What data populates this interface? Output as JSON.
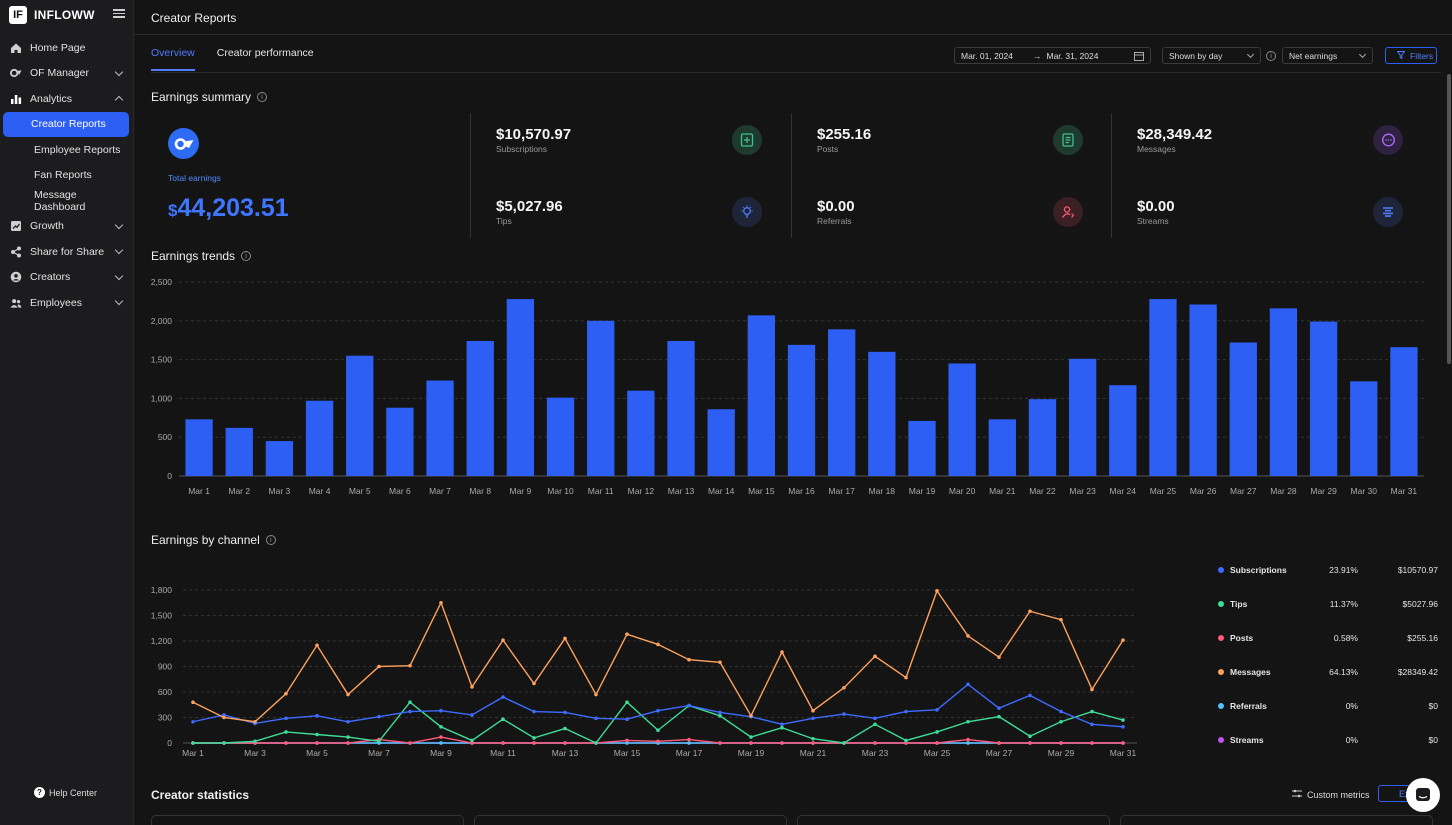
{
  "app": {
    "logo_letters": "IF",
    "name": "INFLOWW"
  },
  "sidebar": {
    "items": [
      {
        "label": "Home Page",
        "icon": "home-icon"
      },
      {
        "label": "OF Manager",
        "icon": "of-icon"
      },
      {
        "label": "Analytics",
        "icon": "bar-chart-icon"
      },
      {
        "label": "Growth",
        "icon": "growth-icon"
      },
      {
        "label": "Share for Share",
        "icon": "share-icon"
      },
      {
        "label": "Creators",
        "icon": "user-circle-icon"
      },
      {
        "label": "Employees",
        "icon": "people-icon"
      }
    ],
    "analytics_sub": [
      "Creator Reports",
      "Employee Reports",
      "Fan Reports",
      "Message Dashboard"
    ],
    "help": "Help Center"
  },
  "header": {
    "title": "Creator Reports"
  },
  "tabs": [
    "Overview",
    "Creator performance"
  ],
  "controls": {
    "date_from": "Mar. 01, 2024",
    "arrow": "→",
    "date_to": "Mar. 31, 2024",
    "shown_by": "Shown by day",
    "metric": "Net earnings",
    "filters": "Filters"
  },
  "summary": {
    "title": "Earnings summary",
    "total_label": "Total earnings",
    "total_symbol": "$",
    "total_value": "44,203.51",
    "stats": [
      {
        "value": "$10,570.97",
        "label": "Subscriptions",
        "icon": "subscription-icon",
        "color": "#3ec28f"
      },
      {
        "value": "$5,027.96",
        "label": "Tips",
        "icon": "bulb-icon",
        "color": "#4f7cff"
      },
      {
        "value": "$255.16",
        "label": "Posts",
        "icon": "document-icon",
        "color": "#3ec28f"
      },
      {
        "value": "$0.00",
        "label": "Referrals",
        "icon": "referral-icon",
        "color": "#ff5a6a"
      },
      {
        "value": "$28,349.42",
        "label": "Messages",
        "icon": "message-icon",
        "color": "#b06cff"
      },
      {
        "value": "$0.00",
        "label": "Streams",
        "icon": "stream-icon",
        "color": "#4f7cff"
      }
    ]
  },
  "chart_data": [
    {
      "type": "bar",
      "title": "Earnings trends",
      "categories": [
        "Mar 1",
        "Mar 2",
        "Mar 3",
        "Mar 4",
        "Mar 5",
        "Mar 6",
        "Mar 7",
        "Mar 8",
        "Mar 9",
        "Mar 10",
        "Mar 11",
        "Mar 12",
        "Mar 13",
        "Mar 14",
        "Mar 15",
        "Mar 16",
        "Mar 17",
        "Mar 18",
        "Mar 19",
        "Mar 20",
        "Mar 21",
        "Mar 22",
        "Mar 23",
        "Mar 24",
        "Mar 25",
        "Mar 26",
        "Mar 27",
        "Mar 28",
        "Mar 29",
        "Mar 30",
        "Mar 31"
      ],
      "values": [
        730,
        620,
        450,
        970,
        1550,
        880,
        1230,
        1740,
        2280,
        1010,
        2000,
        1100,
        1740,
        860,
        2070,
        1690,
        1890,
        1600,
        710,
        1450,
        730,
        990,
        1510,
        1170,
        2280,
        2210,
        1720,
        2160,
        1990,
        1220,
        1660
      ],
      "ylim": [
        0,
        2500
      ],
      "yticks": [
        "0",
        "500",
        "1,000",
        "1,500",
        "2,000",
        "2,500"
      ],
      "color": "#2d5ff5",
      "grid": true
    },
    {
      "type": "line",
      "title": "Earnings by channel",
      "x": [
        "Mar 1",
        "Mar 2",
        "Mar 3",
        "Mar 4",
        "Mar 5",
        "Mar 6",
        "Mar 7",
        "Mar 8",
        "Mar 9",
        "Mar 10",
        "Mar 11",
        "Mar 12",
        "Mar 13",
        "Mar 14",
        "Mar 15",
        "Mar 16",
        "Mar 17",
        "Mar 18",
        "Mar 19",
        "Mar 20",
        "Mar 21",
        "Mar 22",
        "Mar 23",
        "Mar 24",
        "Mar 25",
        "Mar 26",
        "Mar 27",
        "Mar 28",
        "Mar 29",
        "Mar 30",
        "Mar 31"
      ],
      "xticks": [
        "Mar 1",
        "Mar 3",
        "Mar 5",
        "Mar 7",
        "Mar 9",
        "Mar 11",
        "Mar 13",
        "Mar 15",
        "Mar 17",
        "Mar 19",
        "Mar 21",
        "Mar 23",
        "Mar 25",
        "Mar 27",
        "Mar 29",
        "Mar 31"
      ],
      "ylim": [
        0,
        1800
      ],
      "yticks": [
        "0",
        "300",
        "600",
        "900",
        "1,200",
        "1,500",
        "1,800"
      ],
      "grid": true,
      "series": [
        {
          "name": "Subscriptions",
          "color": "#3e6bff",
          "values": [
            250,
            330,
            230,
            290,
            320,
            250,
            310,
            370,
            380,
            330,
            540,
            370,
            360,
            290,
            280,
            380,
            440,
            360,
            310,
            220,
            290,
            340,
            290,
            370,
            390,
            690,
            410,
            560,
            370,
            220,
            190
          ]
        },
        {
          "name": "Tips",
          "color": "#3ddc97",
          "values": [
            0,
            0,
            20,
            130,
            100,
            70,
            20,
            480,
            190,
            30,
            280,
            60,
            170,
            0,
            480,
            150,
            440,
            320,
            70,
            180,
            50,
            0,
            220,
            30,
            130,
            250,
            310,
            80,
            250,
            370,
            270
          ]
        },
        {
          "name": "Posts",
          "color": "#ff5a7a",
          "values": [
            0,
            0,
            0,
            0,
            0,
            0,
            40,
            0,
            70,
            0,
            0,
            0,
            0,
            0,
            30,
            20,
            40,
            0,
            0,
            0,
            0,
            0,
            0,
            0,
            0,
            40,
            0,
            0,
            0,
            0,
            0
          ]
        },
        {
          "name": "Messages",
          "color": "#ffa25e",
          "values": [
            480,
            300,
            250,
            580,
            1150,
            570,
            900,
            910,
            1650,
            660,
            1210,
            700,
            1230,
            570,
            1280,
            1160,
            980,
            950,
            320,
            1070,
            380,
            650,
            1020,
            770,
            1790,
            1260,
            1010,
            1550,
            1450,
            630,
            1210
          ]
        },
        {
          "name": "Referrals",
          "color": "#4fc3f7",
          "values": [
            0,
            0,
            0,
            0,
            0,
            0,
            0,
            0,
            0,
            0,
            0,
            0,
            0,
            0,
            0,
            0,
            0,
            0,
            0,
            0,
            0,
            0,
            0,
            0,
            0,
            0,
            0,
            0,
            0,
            0,
            0
          ]
        },
        {
          "name": "Streams",
          "color": "#c152f0",
          "values": [
            0,
            0,
            0,
            0,
            0,
            0,
            0,
            0,
            0,
            0,
            0,
            0,
            0,
            0,
            0,
            0,
            0,
            0,
            0,
            0,
            0,
            0,
            0,
            0,
            0,
            0,
            0,
            0,
            0,
            0,
            0
          ]
        }
      ],
      "legend": [
        {
          "name": "Subscriptions",
          "pct": "23.91%",
          "amount": "$10570.97",
          "color": "#3e6bff"
        },
        {
          "name": "Tips",
          "pct": "11.37%",
          "amount": "$5027.96",
          "color": "#3ddc97"
        },
        {
          "name": "Posts",
          "pct": "0.58%",
          "amount": "$255.16",
          "color": "#ff5a7a"
        },
        {
          "name": "Messages",
          "pct": "64.13%",
          "amount": "$28349.42",
          "color": "#ffa25e"
        },
        {
          "name": "Referrals",
          "pct": "0%",
          "amount": "$0",
          "color": "#4fc3f7"
        },
        {
          "name": "Streams",
          "pct": "0%",
          "amount": "$0",
          "color": "#c152f0"
        }
      ],
      "legend_position": "right"
    }
  ],
  "statistics": {
    "title": "Creator statistics",
    "custom_metrics": "Custom metrics",
    "export": "Export"
  }
}
